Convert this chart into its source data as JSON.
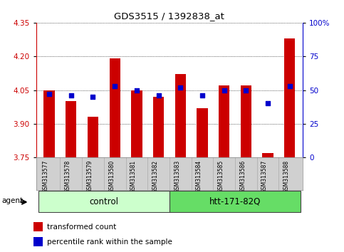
{
  "title": "GDS3515 / 1392838_at",
  "samples": [
    "GSM313577",
    "GSM313578",
    "GSM313579",
    "GSM313580",
    "GSM313581",
    "GSM313582",
    "GSM313583",
    "GSM313584",
    "GSM313585",
    "GSM313586",
    "GSM313587",
    "GSM313588"
  ],
  "transformed_count": [
    4.05,
    4.0,
    3.93,
    4.19,
    4.05,
    4.02,
    4.12,
    3.97,
    4.07,
    4.07,
    3.77,
    4.28
  ],
  "percentile_rank": [
    47,
    46,
    45,
    53,
    50,
    46,
    52,
    46,
    50,
    50,
    40,
    53
  ],
  "ylim_left": [
    3.75,
    4.35
  ],
  "ylim_right": [
    0,
    100
  ],
  "yticks_left": [
    3.75,
    3.9,
    4.05,
    4.2,
    4.35
  ],
  "yticks_right": [
    0,
    25,
    50,
    75,
    100
  ],
  "ytick_labels_right": [
    "0",
    "25",
    "50",
    "75",
    "100%"
  ],
  "bar_color": "#cc0000",
  "dot_color": "#0000cc",
  "bar_bottom": 3.75,
  "group_labels": [
    "control",
    "htt-171-82Q"
  ],
  "group_ranges": [
    [
      0,
      5
    ],
    [
      6,
      11
    ]
  ],
  "group_colors": [
    "#ccffcc",
    "#66dd66"
  ],
  "agent_label": "agent",
  "legend_bar_label": "transformed count",
  "legend_dot_label": "percentile rank within the sample",
  "tick_color_left": "#cc0000",
  "tick_color_right": "#0000cc",
  "background_color": "#ffffff",
  "xlabels_bg_color": "#d0d0d0"
}
